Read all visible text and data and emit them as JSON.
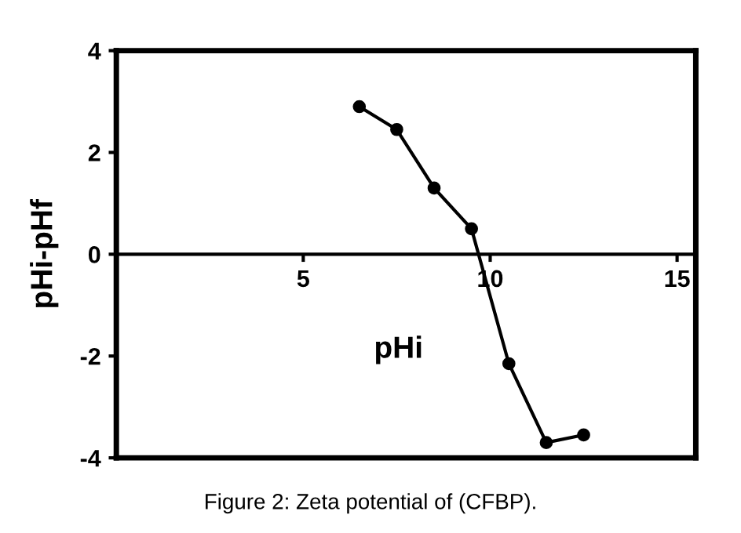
{
  "chart_data": {
    "type": "line",
    "xlabel": "pHi",
    "ylabel": "pHi-pHf",
    "x": [
      6.5,
      7.5,
      8.5,
      9.5,
      10.5,
      11.5,
      12.5
    ],
    "series": [
      {
        "color": "#000000",
        "values": [
          2.9,
          2.45,
          1.3,
          0.5,
          -2.15,
          -3.7,
          -3.55
        ]
      }
    ],
    "xlim": [
      0,
      15.5
    ],
    "xticks": [
      5,
      10,
      15
    ],
    "ylim": [
      -4,
      4
    ],
    "yticks": [
      -4,
      -2,
      0,
      2,
      4
    ],
    "marker": "circle",
    "line_style": "solid",
    "grid": false,
    "legend": false,
    "annotations": [
      "Figure 2: Zeta potential of (CFBP)."
    ]
  }
}
